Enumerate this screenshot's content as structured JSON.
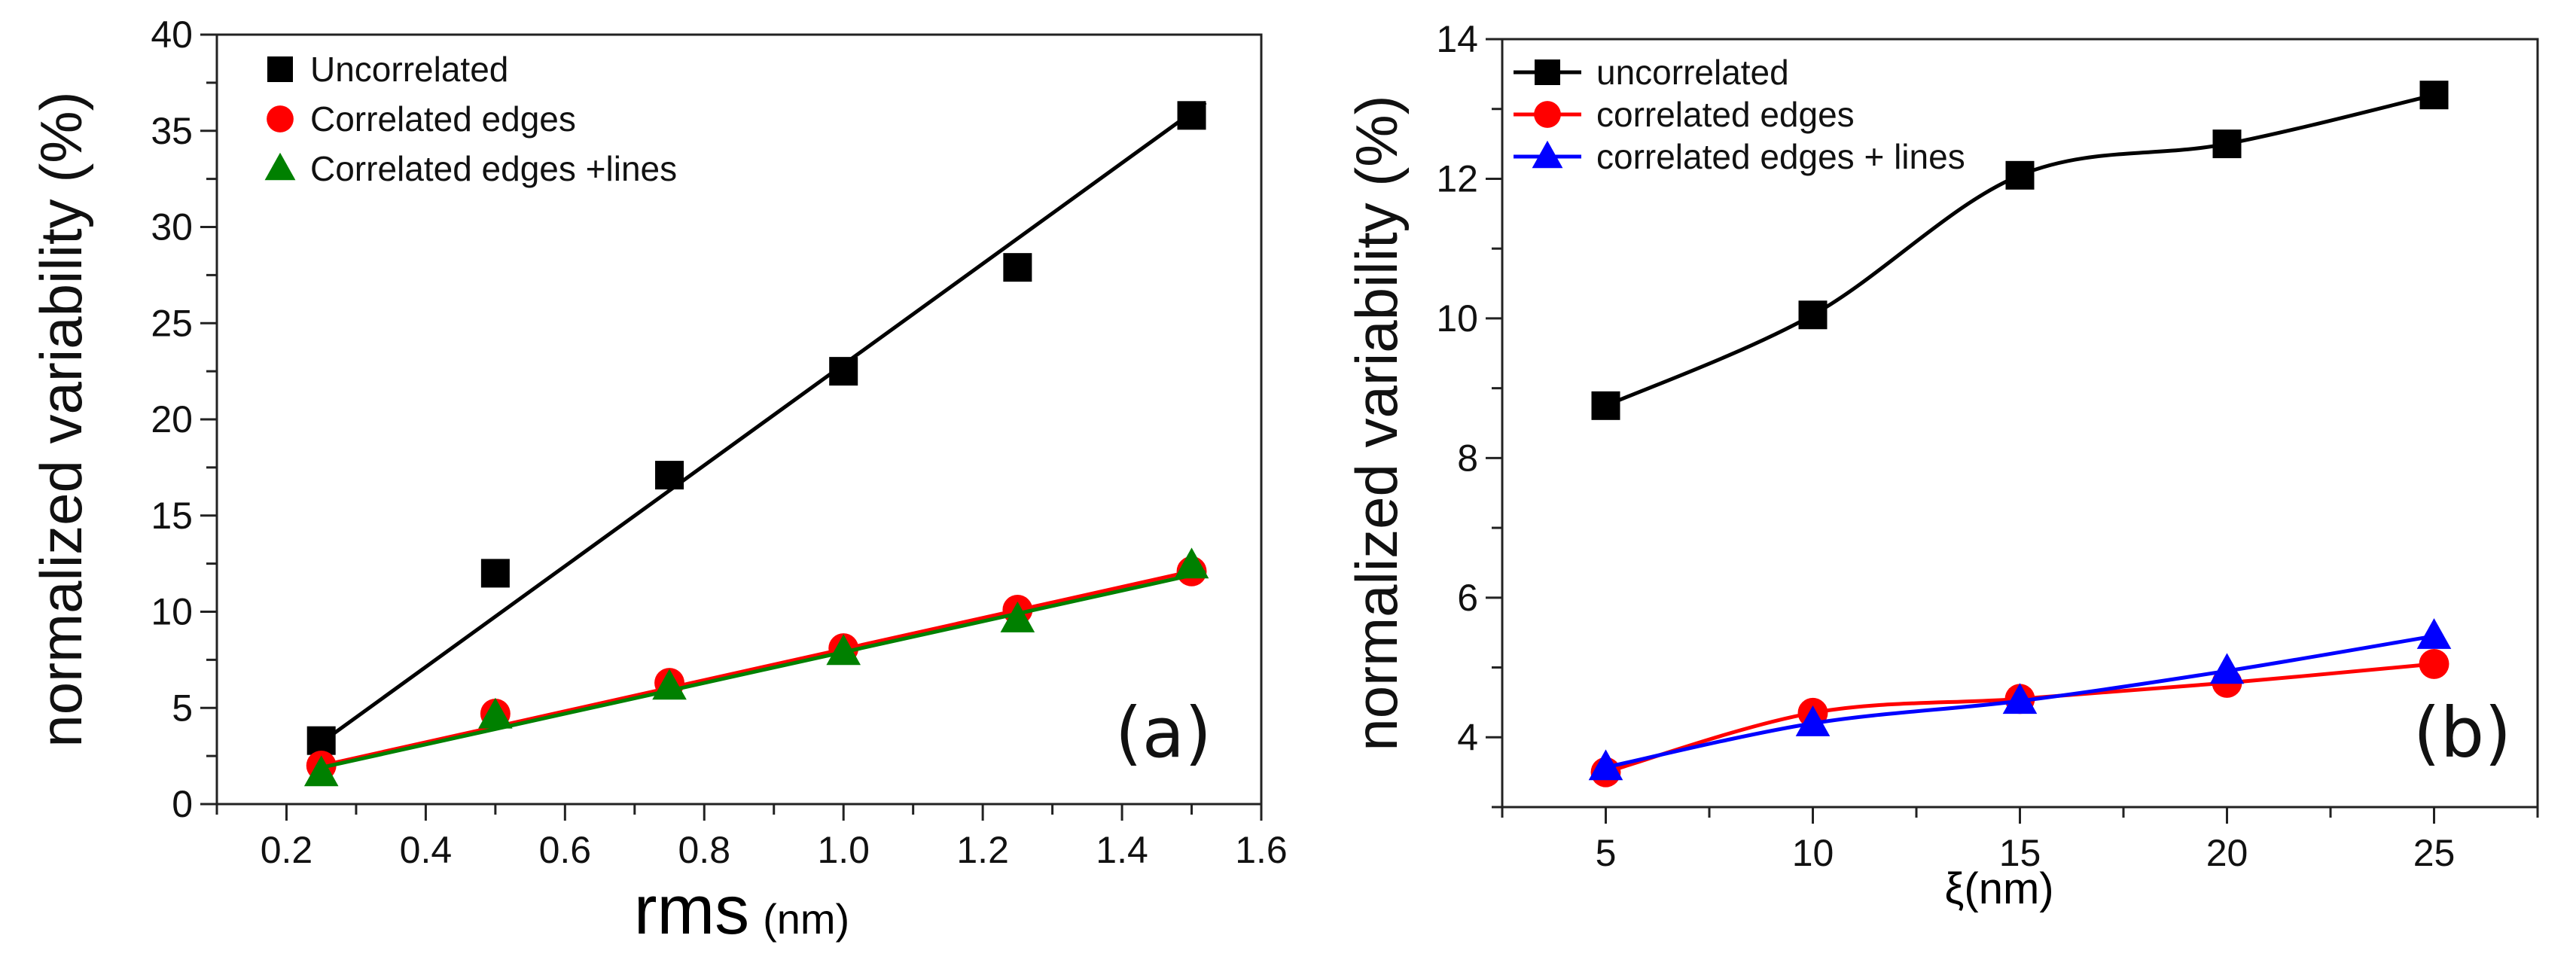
{
  "chart_data": [
    {
      "type": "scatter",
      "panel_label": "(a)",
      "xlabel_main": "rms",
      "xlabel_unit": "(nm)",
      "ylabel": "normalized variability (%)",
      "xlim": [
        0.1,
        1.6
      ],
      "ylim": [
        0,
        40
      ],
      "xticks": [
        0.2,
        0.4,
        0.6,
        0.8,
        1.0,
        1.2,
        1.4,
        1.6
      ],
      "xtick_labels": [
        "0.2",
        "0.4",
        "0.6",
        "0.8",
        "1.0",
        "1.2",
        "1.4",
        "1.6"
      ],
      "xminor_step": 0.1,
      "yticks": [
        0,
        5,
        10,
        15,
        20,
        25,
        30,
        35,
        40
      ],
      "ytick_labels": [
        "0",
        "5",
        "10",
        "15",
        "20",
        "25",
        "30",
        "35",
        "40"
      ],
      "yminor_step": 2.5,
      "legend_placement": "top-left",
      "x": [
        0.25,
        0.5,
        0.75,
        1.0,
        1.25,
        1.5
      ],
      "series": [
        {
          "name": "Uncorrelated",
          "marker": "square",
          "color": "#000000",
          "values": [
            3.3,
            12.0,
            17.1,
            22.5,
            27.9,
            35.8
          ],
          "fit": {
            "slope": 26.2,
            "intercept": -3.35,
            "x_range": [
              0.25,
              1.52
            ]
          }
        },
        {
          "name": " Correlated edges",
          "marker": "circle",
          "color": "#ff0000",
          "values": [
            2.0,
            4.7,
            6.3,
            8.1,
            10.1,
            12.1
          ],
          "fit": {
            "slope": 8.08,
            "intercept": -0.02,
            "x_range": [
              0.25,
              1.52
            ]
          }
        },
        {
          "name": "Correlated edges +lines",
          "marker": "triangle",
          "color": "#008000",
          "values": [
            1.6,
            4.6,
            6.1,
            7.9,
            9.6,
            12.4
          ],
          "fit": {
            "slope": 8.0,
            "intercept": -0.1,
            "x_range": [
              0.25,
              1.52
            ]
          }
        }
      ]
    },
    {
      "type": "line",
      "panel_label": "(b)",
      "xlabel": "ξ(nm)",
      "ylabel": "normalized variability (%)",
      "xlim": [
        2.5,
        27.5
      ],
      "ylim": [
        3,
        14
      ],
      "xticks": [
        5,
        10,
        15,
        20,
        25
      ],
      "xtick_labels": [
        "5",
        "10",
        "15",
        "20",
        "25"
      ],
      "xminor_step": 2.5,
      "yticks": [
        4,
        6,
        8,
        10,
        12,
        14
      ],
      "ytick_labels": [
        "4",
        "6",
        "8",
        "10",
        "12",
        "14"
      ],
      "yminor_step": 1,
      "legend_placement": "top-left",
      "x": [
        5,
        10,
        15,
        20,
        25
      ],
      "series": [
        {
          "name": "uncorrelated",
          "marker": "square",
          "color": "#000000",
          "values": [
            8.75,
            10.05,
            12.05,
            12.5,
            13.2
          ]
        },
        {
          "name": "correlated edges",
          "marker": "circle",
          "color": "#ff0000",
          "values": [
            3.5,
            4.35,
            4.55,
            4.78,
            5.05
          ]
        },
        {
          "name": "correlated edges + lines",
          "marker": "triangle",
          "color": "#0000ff",
          "values": [
            3.57,
            4.2,
            4.52,
            4.95,
            5.45
          ]
        }
      ]
    }
  ]
}
